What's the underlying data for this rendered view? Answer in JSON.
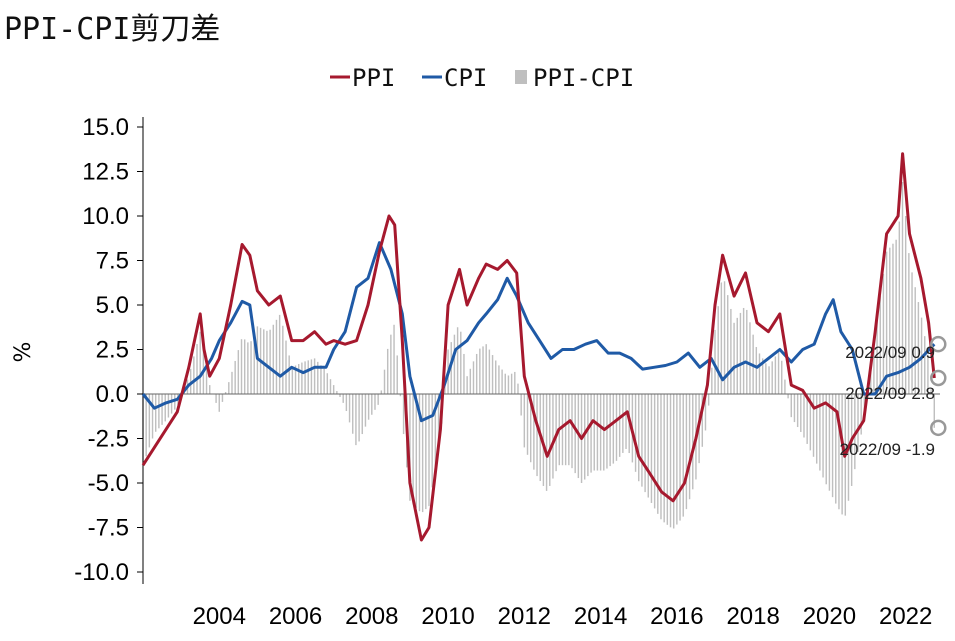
{
  "title": "PPI-CPI剪刀差",
  "chart_data": {
    "type": "line",
    "ylabel": "%",
    "ylim": [
      -10.5,
      15.5
    ],
    "yticks": [
      "15.0",
      "12.5",
      "10.0",
      "7.5",
      "5.0",
      "2.5",
      "0.0",
      "-2.5",
      "-5.0",
      "-7.5",
      "-10.0"
    ],
    "ytick_values": [
      15,
      12.5,
      10,
      7.5,
      5,
      2.5,
      0,
      -2.5,
      -5,
      -7.5,
      -10
    ],
    "xlim": [
      2002.0,
      2022.9
    ],
    "xticks": [
      "2004",
      "2006",
      "2008",
      "2010",
      "2012",
      "2014",
      "2016",
      "2018",
      "2020",
      "2022"
    ],
    "xtick_values": [
      2004,
      2006,
      2008,
      2010,
      2012,
      2014,
      2016,
      2018,
      2020,
      2022
    ],
    "legend": {
      "position": "top"
    },
    "colors": {
      "ppi": "#A6192E",
      "cpi": "#1F5AA6",
      "diff": "#BFBFBF"
    },
    "series": [
      {
        "name": "PPI",
        "style": "line",
        "x": [
          2002.0,
          2002.3,
          2002.6,
          2002.9,
          2003.2,
          2003.5,
          2003.6,
          2003.75,
          2004.0,
          2004.3,
          2004.6,
          2004.8,
          2005.0,
          2005.3,
          2005.6,
          2005.9,
          2006.2,
          2006.5,
          2006.8,
          2007.0,
          2007.3,
          2007.6,
          2007.9,
          2008.2,
          2008.45,
          2008.6,
          2008.8,
          2009.0,
          2009.3,
          2009.5,
          2009.8,
          2010.0,
          2010.3,
          2010.5,
          2010.8,
          2011.0,
          2011.3,
          2011.55,
          2011.8,
          2012.0,
          2012.3,
          2012.6,
          2012.9,
          2013.2,
          2013.5,
          2013.8,
          2014.1,
          2014.4,
          2014.7,
          2015.0,
          2015.3,
          2015.6,
          2015.9,
          2016.2,
          2016.5,
          2016.8,
          2017.0,
          2017.2,
          2017.5,
          2017.8,
          2018.1,
          2018.4,
          2018.7,
          2019.0,
          2019.3,
          2019.6,
          2019.9,
          2020.2,
          2020.4,
          2020.6,
          2020.9,
          2021.2,
          2021.5,
          2021.8,
          2021.92,
          2022.1,
          2022.4,
          2022.6,
          2022.75
        ],
        "y": [
          -4.0,
          -3.0,
          -2.0,
          -1.0,
          1.5,
          4.5,
          2.5,
          1.0,
          2.0,
          5.0,
          8.4,
          7.8,
          5.8,
          5.0,
          5.5,
          3.0,
          3.0,
          3.5,
          2.8,
          3.0,
          2.8,
          3.0,
          5.0,
          8.0,
          10.0,
          9.5,
          3.0,
          -5.0,
          -8.2,
          -7.5,
          -2.0,
          5.0,
          7.0,
          5.0,
          6.5,
          7.3,
          7.0,
          7.5,
          6.8,
          1.0,
          -1.5,
          -3.5,
          -2.0,
          -1.5,
          -2.5,
          -1.5,
          -2.0,
          -1.5,
          -1.0,
          -3.5,
          -4.5,
          -5.5,
          -6.0,
          -5.0,
          -2.5,
          0.5,
          5.0,
          7.8,
          5.5,
          6.8,
          4.0,
          3.5,
          4.5,
          0.5,
          0.2,
          -0.8,
          -0.5,
          -1.0,
          -3.5,
          -2.5,
          -1.5,
          3.5,
          9.0,
          10.0,
          13.5,
          9.0,
          6.5,
          4.0,
          0.9
        ]
      },
      {
        "name": "CPI",
        "style": "line",
        "x": [
          2002.0,
          2002.3,
          2002.6,
          2002.9,
          2003.2,
          2003.5,
          2003.8,
          2004.0,
          2004.3,
          2004.6,
          2004.8,
          2005.0,
          2005.3,
          2005.6,
          2005.9,
          2006.2,
          2006.5,
          2006.8,
          2007.0,
          2007.3,
          2007.6,
          2007.9,
          2008.2,
          2008.5,
          2008.8,
          2009.0,
          2009.3,
          2009.6,
          2009.9,
          2010.2,
          2010.5,
          2010.8,
          2011.0,
          2011.3,
          2011.55,
          2011.8,
          2012.1,
          2012.4,
          2012.7,
          2013.0,
          2013.3,
          2013.6,
          2013.9,
          2014.2,
          2014.5,
          2014.8,
          2015.1,
          2015.4,
          2015.7,
          2016.0,
          2016.3,
          2016.6,
          2016.9,
          2017.2,
          2017.5,
          2017.8,
          2018.1,
          2018.4,
          2018.7,
          2019.0,
          2019.3,
          2019.6,
          2019.9,
          2020.1,
          2020.3,
          2020.6,
          2020.9,
          2021.2,
          2021.5,
          2021.8,
          2022.1,
          2022.4,
          2022.75
        ],
        "y": [
          0.0,
          -0.8,
          -0.5,
          -0.3,
          0.5,
          1.0,
          2.0,
          3.0,
          4.0,
          5.2,
          5.0,
          2.0,
          1.5,
          1.0,
          1.5,
          1.2,
          1.5,
          1.5,
          2.5,
          3.5,
          6.0,
          6.5,
          8.5,
          7.0,
          4.5,
          1.0,
          -1.5,
          -1.2,
          0.5,
          2.5,
          3.0,
          4.0,
          4.5,
          5.3,
          6.5,
          5.5,
          4.0,
          3.0,
          2.0,
          2.5,
          2.5,
          2.8,
          3.0,
          2.3,
          2.3,
          2.0,
          1.4,
          1.5,
          1.6,
          1.8,
          2.3,
          1.5,
          2.0,
          0.8,
          1.5,
          1.8,
          1.5,
          2.0,
          2.5,
          1.8,
          2.5,
          2.8,
          4.5,
          5.3,
          3.5,
          2.5,
          0.0,
          0.0,
          1.0,
          1.2,
          1.5,
          2.0,
          2.8
        ]
      },
      {
        "name": "PPI-CPI",
        "style": "bar",
        "x": [
          2002.0,
          2002.3,
          2002.6,
          2002.9,
          2003.2,
          2003.5,
          2003.75,
          2004.0,
          2004.3,
          2004.6,
          2004.8,
          2005.0,
          2005.3,
          2005.6,
          2005.9,
          2006.2,
          2006.5,
          2006.8,
          2007.0,
          2007.3,
          2007.6,
          2007.9,
          2008.2,
          2008.45,
          2008.6,
          2008.8,
          2009.0,
          2009.3,
          2009.5,
          2009.8,
          2010.0,
          2010.3,
          2010.5,
          2010.8,
          2011.0,
          2011.3,
          2011.55,
          2011.8,
          2012.0,
          2012.3,
          2012.6,
          2012.9,
          2013.2,
          2013.5,
          2013.8,
          2014.1,
          2014.4,
          2014.7,
          2015.0,
          2015.3,
          2015.6,
          2015.9,
          2016.2,
          2016.5,
          2016.8,
          2017.0,
          2017.2,
          2017.5,
          2017.8,
          2018.1,
          2018.4,
          2018.7,
          2019.0,
          2019.3,
          2019.6,
          2019.9,
          2020.2,
          2020.4,
          2020.6,
          2020.9,
          2021.2,
          2021.5,
          2021.8,
          2021.92,
          2022.1,
          2022.4,
          2022.6,
          2022.75
        ],
        "y": [
          -4.0,
          -2.2,
          -1.5,
          -0.7,
          1.0,
          3.5,
          0.5,
          -1.0,
          1.0,
          3.2,
          2.8,
          3.8,
          3.5,
          4.5,
          1.5,
          1.8,
          2.0,
          1.3,
          0.5,
          -0.7,
          -3.0,
          -1.5,
          -0.5,
          3.0,
          4.0,
          -1.5,
          -6.0,
          -6.7,
          -6.3,
          -2.5,
          2.5,
          4.0,
          1.0,
          2.5,
          2.8,
          1.7,
          1.0,
          1.3,
          -3.0,
          -4.5,
          -5.5,
          -4.0,
          -4.0,
          -5.0,
          -4.3,
          -4.3,
          -3.8,
          -3.0,
          -4.9,
          -6.0,
          -7.1,
          -7.6,
          -6.8,
          -4.8,
          -1.5,
          3.6,
          6.8,
          4.0,
          5.0,
          2.5,
          1.5,
          2.5,
          -1.3,
          -2.3,
          -3.6,
          -5.0,
          -6.3,
          -7.0,
          -5.0,
          -1.5,
          3.5,
          8.0,
          8.8,
          12.0,
          7.5,
          4.5,
          2.0,
          -1.9
        ]
      }
    ],
    "annotations": [
      {
        "label": "2022/09 0.9",
        "value": 0.9
      },
      {
        "label": "2022/09 2.8",
        "value": 2.8
      },
      {
        "label": "2022/09 -1.9",
        "value": -1.9
      }
    ]
  }
}
